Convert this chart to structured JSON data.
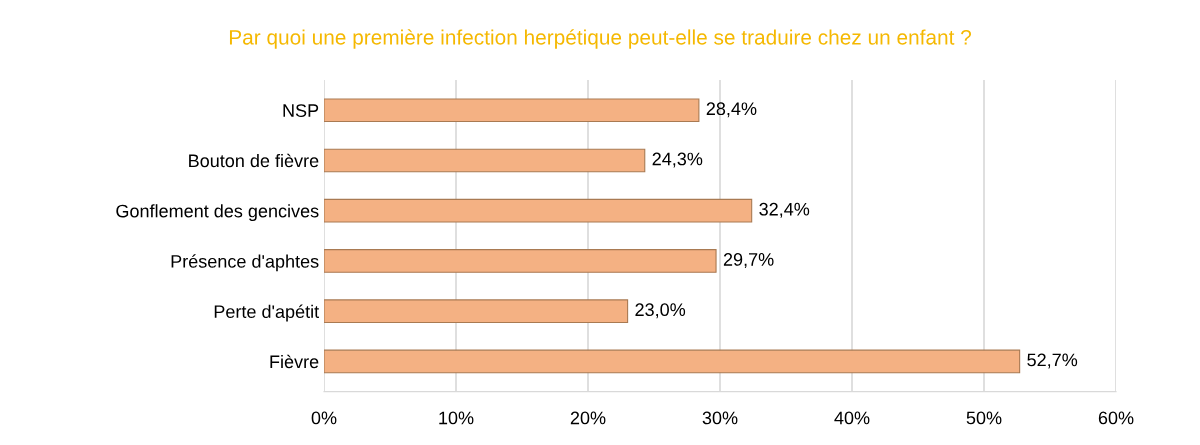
{
  "chart_data": {
    "type": "bar",
    "orientation": "horizontal",
    "title": "Par quoi une première infection herpétique peut-elle se traduire chez un enfant ?",
    "categories": [
      "NSP",
      "Bouton de fièvre",
      "Gonflement des gencives",
      "Présence d'aphtes",
      "Perte d'apétit",
      "Fièvre"
    ],
    "values": [
      28.4,
      24.3,
      32.4,
      29.7,
      23.0,
      52.7
    ],
    "value_labels": [
      "28,4%",
      "24,3%",
      "32,4%",
      "29,7%",
      "23,0%",
      "52,7%"
    ],
    "color": "#f4b183",
    "xlim": [
      0,
      60
    ],
    "xticks": [
      {
        "value": 0,
        "label": "0%"
      },
      {
        "value": 10,
        "label": "10%"
      },
      {
        "value": 20,
        "label": "20%"
      },
      {
        "value": 30,
        "label": "30%"
      },
      {
        "value": 40,
        "label": "40%"
      },
      {
        "value": 50,
        "label": "50%"
      },
      {
        "value": 60,
        "label": "60%"
      }
    ],
    "grid": "x"
  }
}
